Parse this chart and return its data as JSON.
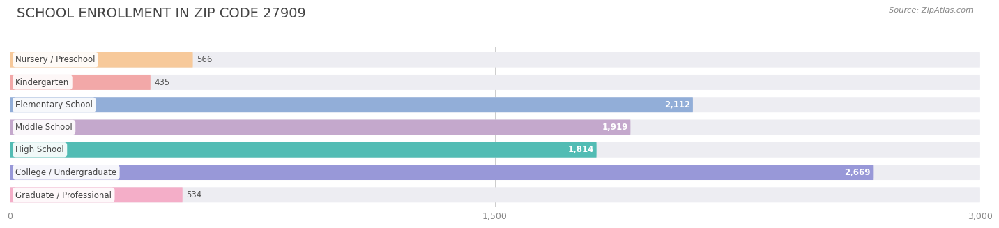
{
  "title": "SCHOOL ENROLLMENT IN ZIP CODE 27909",
  "source": "Source: ZipAtlas.com",
  "categories": [
    "Nursery / Preschool",
    "Kindergarten",
    "Elementary School",
    "Middle School",
    "High School",
    "College / Undergraduate",
    "Graduate / Professional"
  ],
  "values": [
    566,
    435,
    2112,
    1919,
    1814,
    2669,
    534
  ],
  "bar_colors": [
    "#f7c99a",
    "#f2a8a8",
    "#92aed8",
    "#c4a8cc",
    "#52bcb4",
    "#9898d8",
    "#f4aec8"
  ],
  "value_inside": [
    false,
    false,
    true,
    true,
    true,
    true,
    false
  ],
  "xlim": [
    0,
    3000
  ],
  "xticks": [
    0,
    1500,
    3000
  ],
  "xtick_labels": [
    "0",
    "1,500",
    "3,000"
  ],
  "background_color": "#ffffff",
  "bar_bg_color": "#ededf2",
  "title_fontsize": 14,
  "bar_height": 0.68,
  "figsize": [
    14.06,
    3.42
  ]
}
